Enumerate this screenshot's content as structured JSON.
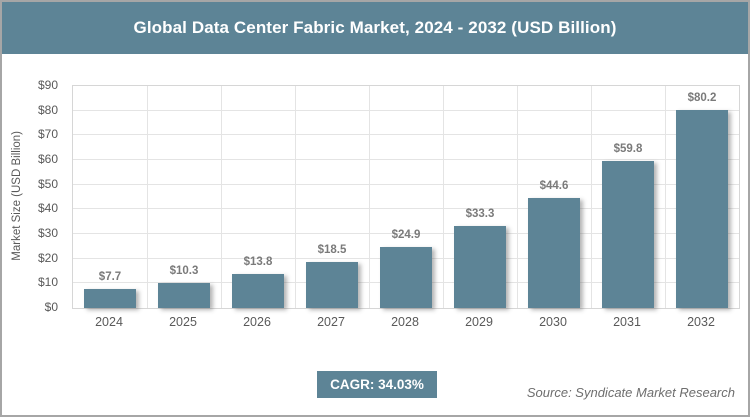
{
  "title": "Global Data Center Fabric Market, 2024 - 2032 (USD Billion)",
  "cagr_label": "CAGR: 34.03%",
  "source": "Source: Syndicate Market Research",
  "colors": {
    "accent": "#5d8496",
    "grid": "#e4e4e4",
    "axis_text": "#595959",
    "data_label": "#7a7a7a",
    "page_border": "#a6a6a6"
  },
  "chart_data": {
    "type": "bar",
    "title": "Global Data Center Fabric Market, 2024 - 2032 (USD Billion)",
    "categories": [
      "2024",
      "2025",
      "2026",
      "2027",
      "2028",
      "2029",
      "2030",
      "2031",
      "2032"
    ],
    "values": [
      7.7,
      10.3,
      13.8,
      18.5,
      24.9,
      33.3,
      44.6,
      59.8,
      80.2
    ],
    "data_labels": [
      "$7.7",
      "$10.3",
      "$13.8",
      "$18.5",
      "$24.9",
      "$33.3",
      "$44.6",
      "$59.8",
      "$80.2"
    ],
    "xlabel": "",
    "ylabel": "Market Size (USD Billion)",
    "ylim": [
      0,
      90
    ],
    "ytick_step": 10,
    "ytick_prefix": "$",
    "grid": true,
    "legend": false,
    "annotation": "CAGR: 34.03%",
    "source_note": "Source: Syndicate Market Research"
  }
}
